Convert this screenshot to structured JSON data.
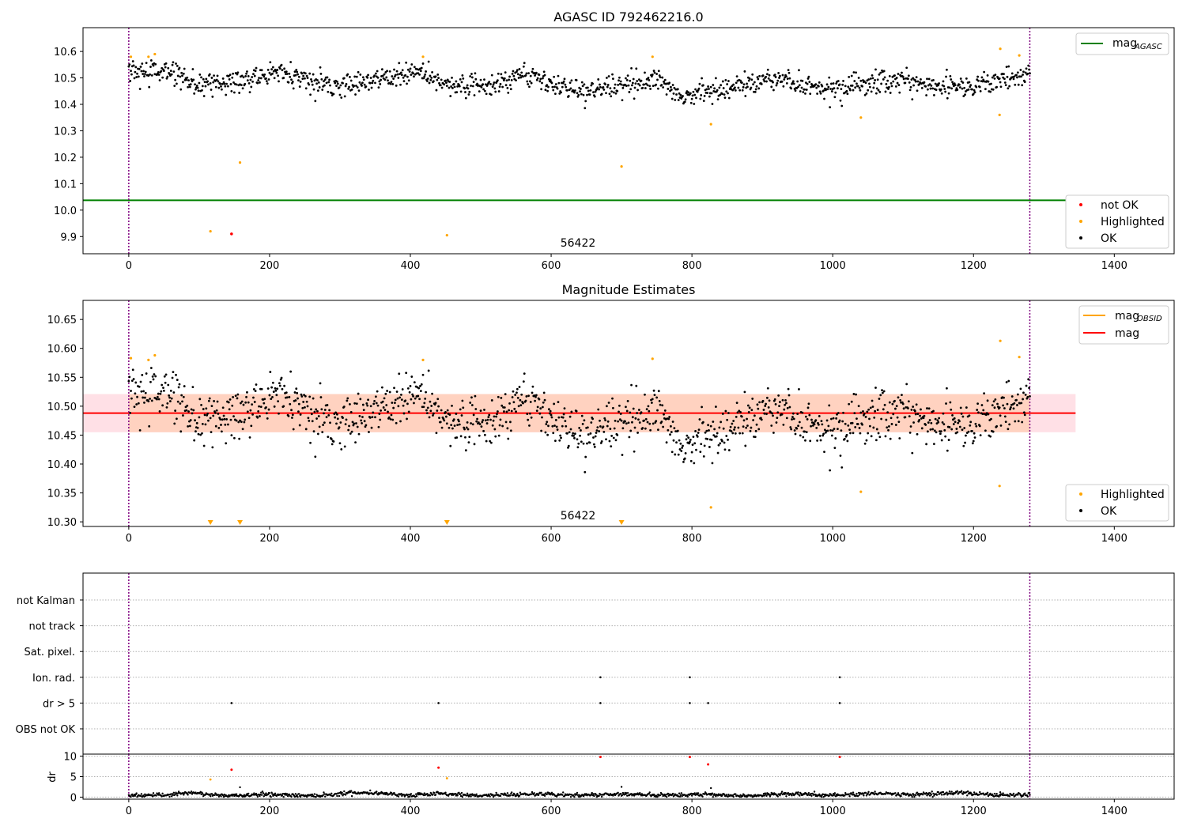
{
  "chart_data": [
    {
      "type": "scatter",
      "id": "mag-agasc",
      "title": "AGASC ID 792462216.0",
      "xlim": [
        -65,
        1485
      ],
      "ylim": [
        9.835,
        10.69
      ],
      "xticks": [
        0,
        200,
        400,
        600,
        800,
        1000,
        1200,
        1400
      ],
      "xtick_labels": [
        "0",
        "200",
        "400",
        "600",
        "800",
        "1000",
        "1200",
        "1400"
      ],
      "yticks": [
        9.9,
        10.0,
        10.1,
        10.2,
        10.3,
        10.4,
        10.5,
        10.6
      ],
      "ytick_labels": [
        "9.9",
        "10.0",
        "10.1",
        "10.2",
        "10.3",
        "10.4",
        "10.5",
        "10.6"
      ],
      "vlines": [
        0,
        1280
      ],
      "annotation": {
        "text": "56422",
        "x": 640,
        "y": 9.89
      },
      "mag_agasc_line": {
        "value": 10.037,
        "color": "#008000"
      },
      "legend_lines": [
        {
          "label": "mag",
          "sub": "AGASC",
          "color": "#008000"
        }
      ],
      "legend_points": [
        {
          "label": "not OK",
          "color": "#ff0000"
        },
        {
          "label": "Highlighted",
          "color": "#ffa500"
        },
        {
          "label": "OK",
          "color": "#000000"
        }
      ],
      "ok_trend": [
        [
          0,
          10.53
        ],
        [
          30,
          10.52
        ],
        [
          60,
          10.53
        ],
        [
          90,
          10.47
        ],
        [
          130,
          10.48
        ],
        [
          170,
          10.49
        ],
        [
          220,
          10.53
        ],
        [
          260,
          10.48
        ],
        [
          300,
          10.47
        ],
        [
          360,
          10.5
        ],
        [
          410,
          10.52
        ],
        [
          450,
          10.48
        ],
        [
          510,
          10.47
        ],
        [
          560,
          10.51
        ],
        [
          600,
          10.48
        ],
        [
          650,
          10.45
        ],
        [
          700,
          10.47
        ],
        [
          750,
          10.5
        ],
        [
          790,
          10.43
        ],
        [
          830,
          10.45
        ],
        [
          870,
          10.47
        ],
        [
          920,
          10.5
        ],
        [
          960,
          10.47
        ],
        [
          1000,
          10.46
        ],
        [
          1060,
          10.48
        ],
        [
          1110,
          10.49
        ],
        [
          1150,
          10.47
        ],
        [
          1200,
          10.47
        ],
        [
          1240,
          10.5
        ],
        [
          1280,
          10.51
        ]
      ],
      "ok_noise": 0.022,
      "highlighted": [
        [
          3,
          10.58
        ],
        [
          28,
          10.58
        ],
        [
          37,
          10.59
        ],
        [
          116,
          9.92
        ],
        [
          158,
          10.18
        ],
        [
          418,
          10.58
        ],
        [
          452,
          9.905
        ],
        [
          700,
          10.165
        ],
        [
          744,
          10.58
        ],
        [
          827,
          10.325
        ],
        [
          1040,
          10.35
        ],
        [
          1237,
          10.36
        ],
        [
          1238,
          10.61
        ],
        [
          1265,
          10.585
        ]
      ],
      "not_ok": [
        [
          146,
          9.91
        ]
      ]
    },
    {
      "type": "scatter",
      "id": "mag-estimates",
      "title": "Magnitude Estimates",
      "xlim": [
        -65,
        1485
      ],
      "ylim": [
        10.292,
        10.683
      ],
      "xticks": [
        0,
        200,
        400,
        600,
        800,
        1000,
        1200,
        1400
      ],
      "xtick_labels": [
        "0",
        "200",
        "400",
        "600",
        "800",
        "1000",
        "1200",
        "1400"
      ],
      "yticks": [
        10.3,
        10.35,
        10.4,
        10.45,
        10.5,
        10.55,
        10.6,
        10.65
      ],
      "ytick_labels": [
        "10.30",
        "10.35",
        "10.40",
        "10.45",
        "10.50",
        "10.55",
        "10.60",
        "10.65"
      ],
      "vlines": [
        0,
        1280
      ],
      "annotation": {
        "text": "56422",
        "x": 640,
        "y": 10.308
      },
      "mag_line": {
        "value": 10.488,
        "color": "#ff0000"
      },
      "band_outer": {
        "lo": 10.455,
        "hi": 10.521,
        "x": [
          -65,
          1345
        ],
        "color": "#ffe0e6"
      },
      "band_inner": {
        "lo": 10.455,
        "hi": 10.521,
        "x": [
          0,
          1280
        ],
        "color": "#ffd2c0"
      },
      "obsid_line": {
        "value": 10.488,
        "x": [
          0,
          1280
        ],
        "color": "#ffa500"
      },
      "legend_lines": [
        {
          "label": "mag",
          "sub": "OBSID",
          "color": "#ffa500"
        },
        {
          "label": "mag",
          "sub": "",
          "color": "#ff0000"
        }
      ],
      "legend_points": [
        {
          "label": "Highlighted",
          "color": "#ffa500"
        },
        {
          "label": "OK",
          "color": "#000000"
        }
      ],
      "highlighted": [
        [
          3,
          10.583
        ],
        [
          28,
          10.58
        ],
        [
          37,
          10.588
        ],
        [
          418,
          10.58
        ],
        [
          744,
          10.582
        ],
        [
          827,
          10.325
        ],
        [
          1040,
          10.352
        ],
        [
          1237,
          10.362
        ],
        [
          1238,
          10.613
        ],
        [
          1265,
          10.585
        ]
      ],
      "clipped_low": [
        116,
        158,
        452,
        700
      ]
    },
    {
      "type": "scatter",
      "id": "flags",
      "ylabels": [
        "not Kalman",
        "not track",
        "Sat. pixel.",
        "Ion. rad.",
        "dr > 5",
        "OBS not OK"
      ],
      "flag_points": {
        "Ion. rad.": [
          670,
          797,
          1010
        ],
        "dr > 5": [
          146,
          440,
          670,
          797,
          823,
          1010
        ]
      },
      "vlines": [
        0,
        1280
      ]
    },
    {
      "type": "scatter",
      "id": "dr",
      "ylabel": "dr",
      "xlim": [
        -65,
        1485
      ],
      "ylim": [
        -0.5,
        10.5
      ],
      "xticks": [
        0,
        200,
        400,
        600,
        800,
        1000,
        1200,
        1400
      ],
      "xtick_labels": [
        "0",
        "200",
        "400",
        "600",
        "800",
        "1000",
        "1200",
        "1400"
      ],
      "yticks": [
        0,
        5,
        10
      ],
      "ytick_labels": [
        "0",
        "5",
        "10"
      ],
      "vlines": [
        0,
        1280
      ],
      "ok_trend": [
        [
          0,
          0.5
        ],
        [
          40,
          0.4
        ],
        [
          90,
          1.0
        ],
        [
          140,
          0.3
        ],
        [
          200,
          0.7
        ],
        [
          260,
          0.3
        ],
        [
          320,
          1.1
        ],
        [
          360,
          1.0
        ],
        [
          400,
          0.4
        ],
        [
          440,
          0.8
        ],
        [
          500,
          0.4
        ],
        [
          580,
          0.8
        ],
        [
          640,
          0.4
        ],
        [
          700,
          0.8
        ],
        [
          760,
          0.4
        ],
        [
          820,
          0.7
        ],
        [
          880,
          0.3
        ],
        [
          940,
          0.8
        ],
        [
          1000,
          0.4
        ],
        [
          1060,
          0.9
        ],
        [
          1120,
          0.6
        ],
        [
          1180,
          1.1
        ],
        [
          1230,
          0.4
        ],
        [
          1280,
          0.6
        ]
      ],
      "ok_noise": 0.25,
      "ok_extra": [
        [
          158,
          2.4
        ],
        [
          700,
          2.5
        ],
        [
          827,
          2.2
        ],
        [
          1238,
          1.2
        ]
      ],
      "highlighted": [
        [
          116,
          4.3
        ],
        [
          452,
          4.6
        ]
      ],
      "not_ok": [
        [
          146,
          6.7
        ],
        [
          440,
          7.2
        ],
        [
          670,
          9.8
        ],
        [
          797,
          9.8
        ],
        [
          823,
          8.0
        ],
        [
          1010,
          9.8
        ]
      ]
    }
  ]
}
